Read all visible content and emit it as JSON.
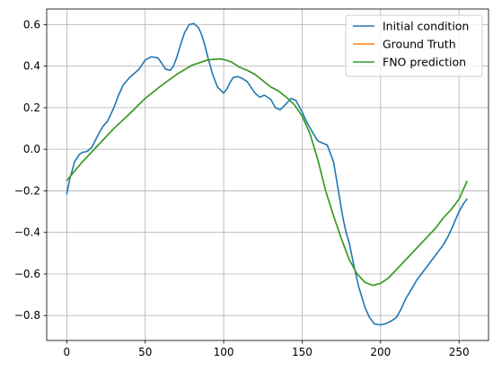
{
  "chart_data": {
    "type": "line",
    "title": "",
    "xlabel": "",
    "ylabel": "",
    "xlim": [
      -12.8,
      268.8
    ],
    "ylim": [
      -0.92,
      0.675
    ],
    "grid": true,
    "legend_position": "upper-right",
    "x_ticks": [
      0,
      50,
      100,
      150,
      200,
      250
    ],
    "y_ticks": [
      -0.8,
      -0.6,
      -0.4,
      -0.2,
      0.0,
      0.2,
      0.4,
      0.6
    ],
    "y_tick_labels": [
      "−0.8",
      "−0.6",
      "−0.4",
      "−0.2",
      "0.0",
      "0.2",
      "0.4",
      "0.6"
    ],
    "series": [
      {
        "name": "Initial condition",
        "color": "#1f77b4",
        "x": [
          0,
          2,
          5,
          8,
          10,
          13,
          16,
          20,
          23,
          26,
          30,
          33,
          36,
          40,
          43,
          46,
          50,
          54,
          58,
          60,
          63,
          66,
          68,
          70,
          72,
          75,
          78,
          81,
          84,
          86,
          88,
          90,
          93,
          96,
          100,
          102,
          104,
          106,
          109,
          112,
          115,
          120,
          123,
          126,
          130,
          133,
          136,
          140,
          143,
          146,
          150,
          153,
          156,
          160,
          163,
          166,
          170,
          172,
          174,
          176,
          178,
          180,
          183,
          186,
          190,
          193,
          196,
          200,
          203,
          206,
          210,
          213,
          216,
          220,
          223,
          226,
          230,
          233,
          236,
          240,
          243,
          246,
          250,
          253,
          255
        ],
        "y": [
          -0.215,
          -0.14,
          -0.06,
          -0.025,
          -0.015,
          -0.01,
          0.01,
          0.07,
          0.11,
          0.135,
          0.2,
          0.26,
          0.31,
          0.345,
          0.365,
          0.385,
          0.43,
          0.445,
          0.44,
          0.42,
          0.385,
          0.38,
          0.4,
          0.44,
          0.49,
          0.56,
          0.6,
          0.605,
          0.585,
          0.55,
          0.5,
          0.44,
          0.36,
          0.3,
          0.27,
          0.29,
          0.32,
          0.345,
          0.35,
          0.34,
          0.325,
          0.27,
          0.25,
          0.26,
          0.24,
          0.2,
          0.19,
          0.22,
          0.245,
          0.235,
          0.18,
          0.13,
          0.09,
          0.04,
          0.03,
          0.02,
          -0.06,
          -0.15,
          -0.24,
          -0.33,
          -0.4,
          -0.45,
          -0.56,
          -0.66,
          -0.76,
          -0.81,
          -0.84,
          -0.845,
          -0.84,
          -0.83,
          -0.81,
          -0.77,
          -0.72,
          -0.67,
          -0.63,
          -0.6,
          -0.56,
          -0.53,
          -0.5,
          -0.46,
          -0.42,
          -0.37,
          -0.3,
          -0.26,
          -0.24
        ]
      },
      {
        "name": "Ground Truth",
        "color": "#ff7f0e",
        "x": [
          0,
          10,
          20,
          30,
          40,
          50,
          60,
          70,
          80,
          90,
          97,
          100,
          105,
          110,
          115,
          120,
          125,
          130,
          135,
          140,
          145,
          150,
          155,
          160,
          165,
          170,
          175,
          180,
          185,
          190,
          195,
          200,
          205,
          210,
          215,
          220,
          225,
          230,
          235,
          240,
          245,
          250,
          255
        ],
        "y": [
          -0.15,
          -0.06,
          0.02,
          0.1,
          0.17,
          0.245,
          0.305,
          0.36,
          0.405,
          0.43,
          0.435,
          0.432,
          0.42,
          0.395,
          0.38,
          0.36,
          0.33,
          0.3,
          0.28,
          0.25,
          0.215,
          0.16,
          0.075,
          -0.05,
          -0.2,
          -0.32,
          -0.43,
          -0.53,
          -0.6,
          -0.64,
          -0.655,
          -0.645,
          -0.62,
          -0.58,
          -0.54,
          -0.5,
          -0.46,
          -0.42,
          -0.38,
          -0.33,
          -0.29,
          -0.24,
          -0.155
        ]
      },
      {
        "name": "FNO prediction",
        "color": "#2ca02c",
        "x": [
          0,
          10,
          20,
          30,
          40,
          50,
          60,
          70,
          80,
          90,
          97,
          100,
          105,
          110,
          115,
          120,
          125,
          130,
          135,
          140,
          145,
          150,
          155,
          160,
          165,
          170,
          175,
          180,
          185,
          190,
          195,
          200,
          205,
          210,
          215,
          220,
          225,
          230,
          235,
          240,
          245,
          250,
          255
        ],
        "y": [
          -0.15,
          -0.06,
          0.02,
          0.1,
          0.17,
          0.245,
          0.305,
          0.36,
          0.405,
          0.43,
          0.435,
          0.432,
          0.42,
          0.395,
          0.38,
          0.36,
          0.33,
          0.3,
          0.28,
          0.25,
          0.215,
          0.16,
          0.075,
          -0.05,
          -0.2,
          -0.32,
          -0.43,
          -0.53,
          -0.6,
          -0.64,
          -0.655,
          -0.645,
          -0.62,
          -0.58,
          -0.54,
          -0.5,
          -0.46,
          -0.42,
          -0.38,
          -0.33,
          -0.29,
          -0.24,
          -0.155
        ]
      }
    ]
  }
}
